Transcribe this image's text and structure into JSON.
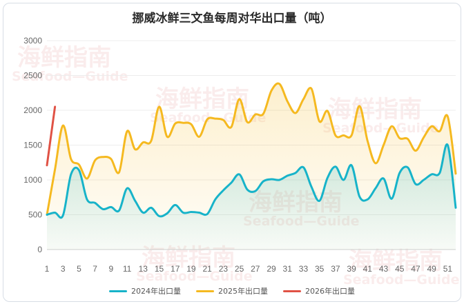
{
  "chart_data": {
    "type": "line",
    "title": "挪威冰鲜三文鱼每周对华出口量（吨）",
    "xlabel": "",
    "ylabel": "",
    "ylim": [
      0,
      3000
    ],
    "yticks": [
      0,
      500,
      1000,
      1500,
      2000,
      2500,
      3000
    ],
    "xticks": [
      1,
      3,
      5,
      7,
      9,
      11,
      13,
      15,
      17,
      19,
      21,
      23,
      25,
      27,
      29,
      31,
      33,
      35,
      37,
      39,
      41,
      43,
      45,
      47,
      49,
      51
    ],
    "grid": true,
    "legend_position": "bottom",
    "watermark": {
      "main": "海鲜指南",
      "sub": "Seafood—Guide"
    },
    "series": [
      {
        "name": "2024年出口量",
        "color": "#17b3c9",
        "x": [
          1,
          2,
          3,
          4,
          5,
          6,
          7,
          8,
          9,
          10,
          11,
          12,
          13,
          14,
          15,
          16,
          17,
          18,
          19,
          20,
          21,
          22,
          23,
          24,
          25,
          26,
          27,
          28,
          29,
          30,
          31,
          32,
          33,
          34,
          35,
          36,
          37,
          38,
          39,
          40,
          41,
          42,
          43,
          44,
          45,
          46,
          47,
          48,
          49,
          50,
          51,
          52
        ],
        "values": [
          500,
          530,
          490,
          1080,
          1140,
          720,
          670,
          580,
          610,
          560,
          880,
          700,
          530,
          600,
          480,
          520,
          640,
          530,
          540,
          530,
          510,
          720,
          850,
          960,
          1080,
          860,
          840,
          980,
          1010,
          1000,
          1060,
          1100,
          1180,
          900,
          700,
          1030,
          1190,
          1000,
          1210,
          760,
          720,
          880,
          1020,
          730,
          1100,
          1180,
          940,
          1000,
          1080,
          1100,
          1500,
          600
        ]
      },
      {
        "name": "2025年出口量",
        "color": "#f5b920",
        "x": [
          1,
          2,
          3,
          4,
          5,
          6,
          7,
          8,
          9,
          10,
          11,
          12,
          13,
          14,
          15,
          16,
          17,
          18,
          19,
          20,
          21,
          22,
          23,
          24,
          25,
          26,
          27,
          28,
          29,
          30,
          31,
          32,
          33,
          34,
          35,
          36,
          37,
          38,
          39,
          40,
          41,
          42,
          43,
          44,
          45,
          46,
          47,
          48,
          49,
          50,
          51,
          52
        ],
        "values": [
          500,
          1150,
          1780,
          1300,
          1220,
          1020,
          1280,
          1330,
          1300,
          1110,
          1700,
          1440,
          1540,
          1560,
          2050,
          1620,
          1810,
          1820,
          1800,
          1620,
          1870,
          1880,
          1860,
          1760,
          2160,
          1830,
          1940,
          1950,
          2280,
          2380,
          2130,
          1960,
          2160,
          2310,
          1840,
          1990,
          1640,
          1640,
          1640,
          2060,
          1560,
          1240,
          1500,
          1770,
          1600,
          1590,
          1420,
          1610,
          1770,
          1700,
          1910,
          1090
        ]
      },
      {
        "name": "2026年出口量",
        "color": "#e05245",
        "x": [
          1,
          2
        ],
        "values": [
          1210,
          2050
        ]
      }
    ]
  }
}
